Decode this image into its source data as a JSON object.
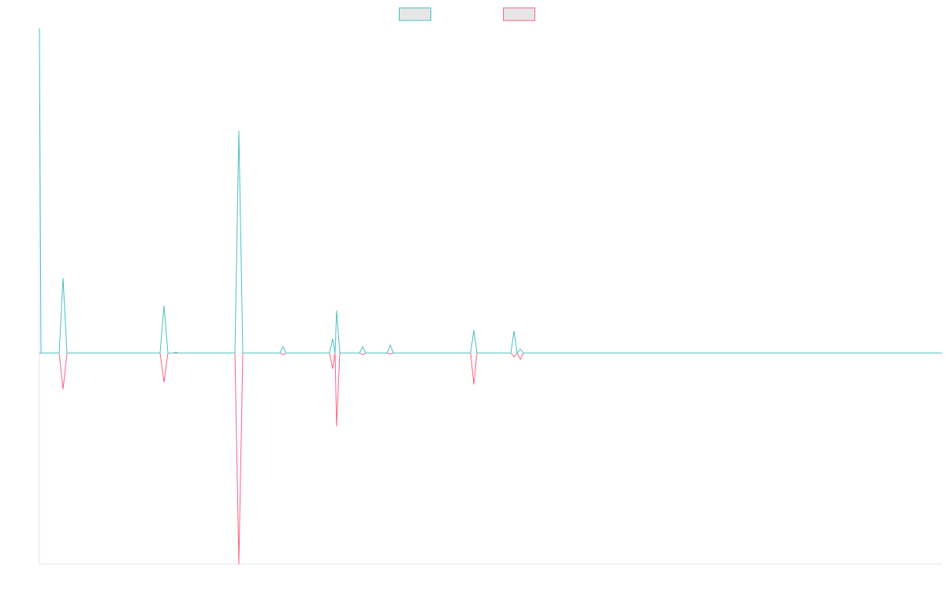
{
  "chart_data": {
    "type": "line",
    "legend": "top",
    "x": [
      0,
      2,
      25,
      30,
      35,
      153,
      158,
      163,
      170,
      173,
      176,
      248,
      253,
      258,
      305,
      309,
      313,
      368,
      372,
      375,
      377,
      381,
      406,
      410,
      414,
      441,
      445,
      449,
      547,
      551,
      555,
      598,
      602,
      606,
      610,
      614,
      1145
    ],
    "xlim": [
      0,
      1145
    ],
    "ylim": [
      -268,
      412
    ],
    "series": [
      {
        "color": "#4bc0c0",
        "values": [
          412,
          0,
          0,
          95,
          0,
          0,
          60,
          0,
          0,
          1,
          0,
          0,
          282,
          0,
          0,
          8,
          0,
          0,
          18,
          0,
          54,
          0,
          0,
          8,
          0,
          0,
          10,
          0,
          0,
          29,
          0,
          0,
          28,
          0,
          5,
          0,
          0
        ]
      },
      {
        "color": "#ff6384",
        "values": [
          0,
          0,
          0,
          -46,
          0,
          0,
          -37,
          0,
          0,
          0,
          0,
          0,
          -268,
          0,
          0,
          -2,
          0,
          0,
          -20,
          0,
          -93,
          0,
          0,
          -2,
          0,
          0,
          -1,
          0,
          0,
          -40,
          0,
          0,
          -5,
          0,
          -8,
          0,
          0
        ]
      }
    ]
  }
}
